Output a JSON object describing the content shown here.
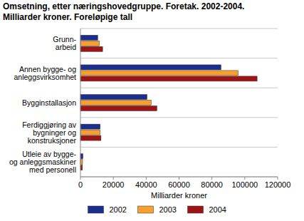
{
  "chart_data": {
    "type": "bar",
    "orientation": "horizontal",
    "title": "Omsetning, etter næringshovedgruppe. Foretak. 2002-2004.",
    "subtitle": "Milliarder kroner. Foreløpige tall",
    "x_label": "Milliarder kroner",
    "categories": [
      "Grunn-\narbeid",
      "Annen bygge- og\nanleggsvirksomhet",
      "Bygginstallasjon",
      "Ferdiggjøring av\nbygninger og\nkonstruksjoner",
      "Utleie av bygge-\nog anleggsmaskiner\nmed personell"
    ],
    "series": [
      {
        "name": "2002",
        "color": "#1b2d8f",
        "values": [
          10500,
          85500,
          40500,
          12000,
          1500
        ]
      },
      {
        "name": "2003",
        "color": "#f7a030",
        "values": [
          11500,
          96000,
          43000,
          12000,
          1300
        ]
      },
      {
        "name": "2004",
        "color": "#9e1414",
        "values": [
          13500,
          107500,
          46500,
          12500,
          1200
        ]
      }
    ],
    "xlim": [
      0,
      120000
    ],
    "xticks": [
      0,
      20000,
      40000,
      60000,
      80000,
      100000,
      120000
    ],
    "grid": true,
    "legend": "bottom"
  }
}
